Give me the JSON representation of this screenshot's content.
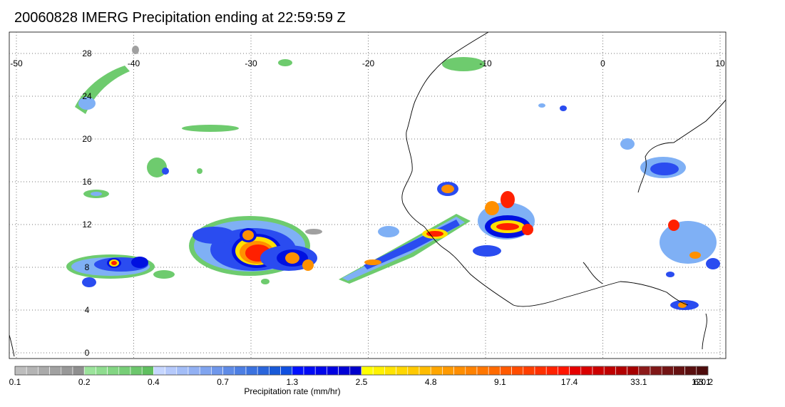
{
  "title": "20060828 IMERG Precipitation ending at 22:59:59 Z",
  "map": {
    "lon_range": [
      -50,
      10
    ],
    "lat_range": [
      -1,
      29
    ],
    "lon_ticks": [
      "-50",
      "-40",
      "-30",
      "-20",
      "-10",
      "0",
      "10"
    ],
    "lat_ticks": [
      "28",
      "24",
      "20",
      "16",
      "12",
      "8",
      "4",
      "0"
    ],
    "gridlines": "dotted",
    "coastline_color": "#000000"
  },
  "colorbar": {
    "label": "Precipitation rate (mm/hr)",
    "tick_labels": [
      "0.1",
      "0.2",
      "0.4",
      "0.7",
      "1.3",
      "2.5",
      "4.8",
      "9.1",
      "17.4",
      "33.1",
      "63.1",
      "120.2"
    ],
    "colors": [
      "#bdbdbd",
      "#b4b4b4",
      "#aaaaaa",
      "#a1a1a1",
      "#989898",
      "#8f8f8f",
      "#9be39b",
      "#8fdc8f",
      "#83d583",
      "#77ce77",
      "#6cc66c",
      "#60bf60",
      "#c6d6ff",
      "#b5c9fb",
      "#a3bdf7",
      "#92b0f3",
      "#80a4ef",
      "#6f97eb",
      "#5e8be7",
      "#4c7ee3",
      "#3b72df",
      "#2a65db",
      "#1859d7",
      "#0f4fe0",
      "#0010ff",
      "#000af5",
      "#0005eb",
      "#0000e1",
      "#0000d6",
      "#0000cc",
      "#ffff00",
      "#fff200",
      "#ffe400",
      "#ffd700",
      "#ffc900",
      "#ffbc00",
      "#ffa600",
      "#ff9a00",
      "#ff8e00",
      "#ff8200",
      "#ff7600",
      "#ff6a00",
      "#ff5a00",
      "#ff4c00",
      "#ff3e00",
      "#ff3000",
      "#ff2200",
      "#ff1400",
      "#e60000",
      "#d90000",
      "#cc0000",
      "#bf0000",
      "#b20000",
      "#a60000",
      "#8c1a1a",
      "#801717",
      "#731414",
      "#661111",
      "#590e0e",
      "#4d0b0b"
    ]
  },
  "legend_palette": {
    "gray": "#a0a0a0",
    "green": "#6ecb6e",
    "light_blue": "#7fb0f5",
    "blue": "#2a4cf0",
    "dark_blue": "#0010e0",
    "yellow": "#ffe000",
    "orange": "#ff9000",
    "red": "#ff2000",
    "dark_red": "#b00000"
  }
}
